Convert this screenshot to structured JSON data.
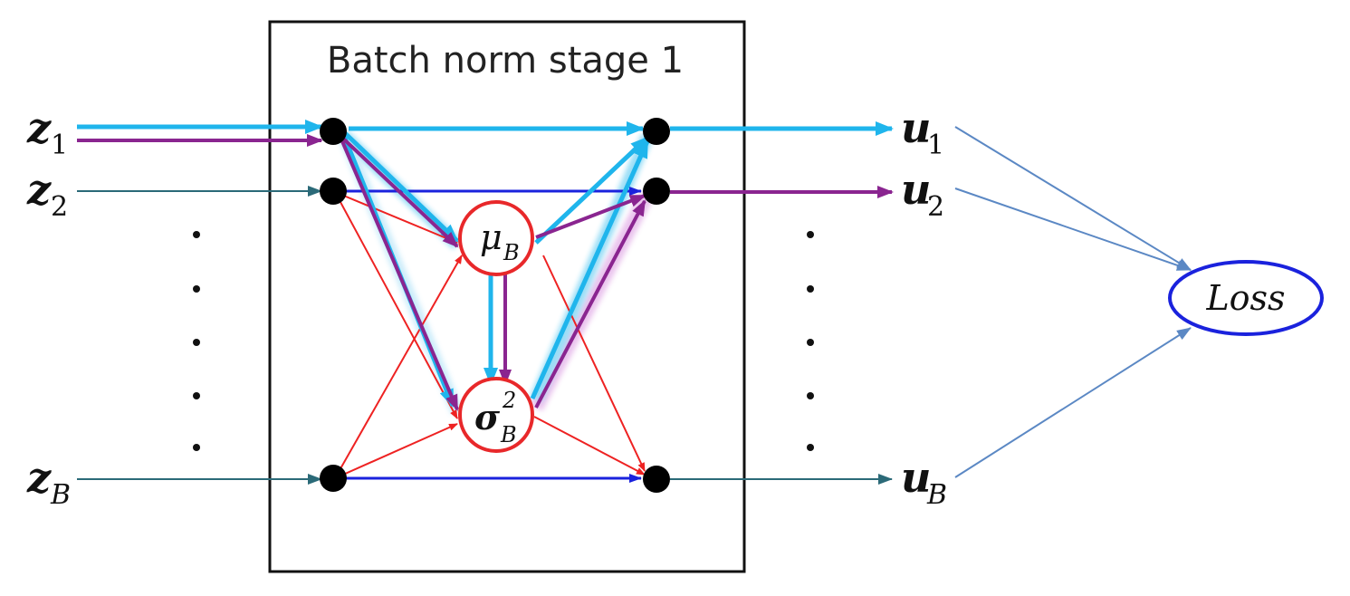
{
  "title": "Batch norm stage 1",
  "inputs": [
    {
      "base": "z",
      "sub": "1"
    },
    {
      "base": "z",
      "sub": "2"
    },
    {
      "base": "z",
      "sub": "B"
    }
  ],
  "outputs": [
    {
      "base": "u",
      "sub": "1"
    },
    {
      "base": "u",
      "sub": "2"
    },
    {
      "base": "u",
      "sub": "B"
    }
  ],
  "mean_node": {
    "base": "μ",
    "sub": "B"
  },
  "var_node": {
    "base": "σ",
    "sub": "B",
    "sup": "2"
  },
  "loss_label": "Loss",
  "colors": {
    "box": "#111111",
    "node": "#000000",
    "stat_circle": "#e8282a",
    "red_edge": "#ee2222",
    "blue_edge": "#1a22dd",
    "cyan_highlight": "#1fb5ec",
    "purple_highlight": "#8a2590",
    "input_arrow": "#2b6a78",
    "output_arrow": "#2b6a78",
    "loss_arrow": "#5b88c4",
    "loss_ellipse": "#1a22dd"
  }
}
